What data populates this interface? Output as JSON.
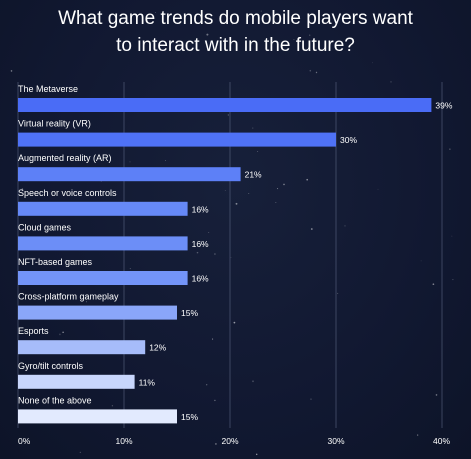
{
  "chart_data": {
    "type": "bar",
    "orientation": "horizontal",
    "title": "What game trends do mobile players want to interact with in the future?",
    "title_lines": [
      "What game trends do mobile players want",
      "to interact with in the future?"
    ],
    "categories": [
      "The Metaverse",
      "Virtual reality (VR)",
      "Augmented reality (AR)",
      "Speech or voice controls",
      "Cloud games",
      "NFT-based games",
      "Cross-platform gameplay",
      "Esports",
      "Gyro/tilt controls",
      "None of the above"
    ],
    "values": [
      39,
      30,
      21,
      16,
      16,
      16,
      15,
      12,
      11,
      15
    ],
    "value_labels": [
      "39%",
      "30%",
      "21%",
      "16%",
      "16%",
      "16%",
      "15%",
      "12%",
      "11%",
      "15%"
    ],
    "bar_colors": [
      "#4a6cf6",
      "#4f72f6",
      "#5d80f7",
      "#6689f7",
      "#6c8ef7",
      "#7394f8",
      "#8aa6f9",
      "#a6bcfa",
      "#c8d6fc",
      "#e2eafe"
    ],
    "xlim": [
      0,
      40
    ],
    "xticks": [
      0,
      10,
      20,
      30,
      40
    ],
    "xtick_labels": [
      "0%",
      "10%",
      "20%",
      "30%",
      "40%"
    ],
    "xlabel": "",
    "ylabel": "",
    "grid": true,
    "background_color": "#121a30",
    "text_color": "#ffffff",
    "grid_color": "#5a6582"
  }
}
